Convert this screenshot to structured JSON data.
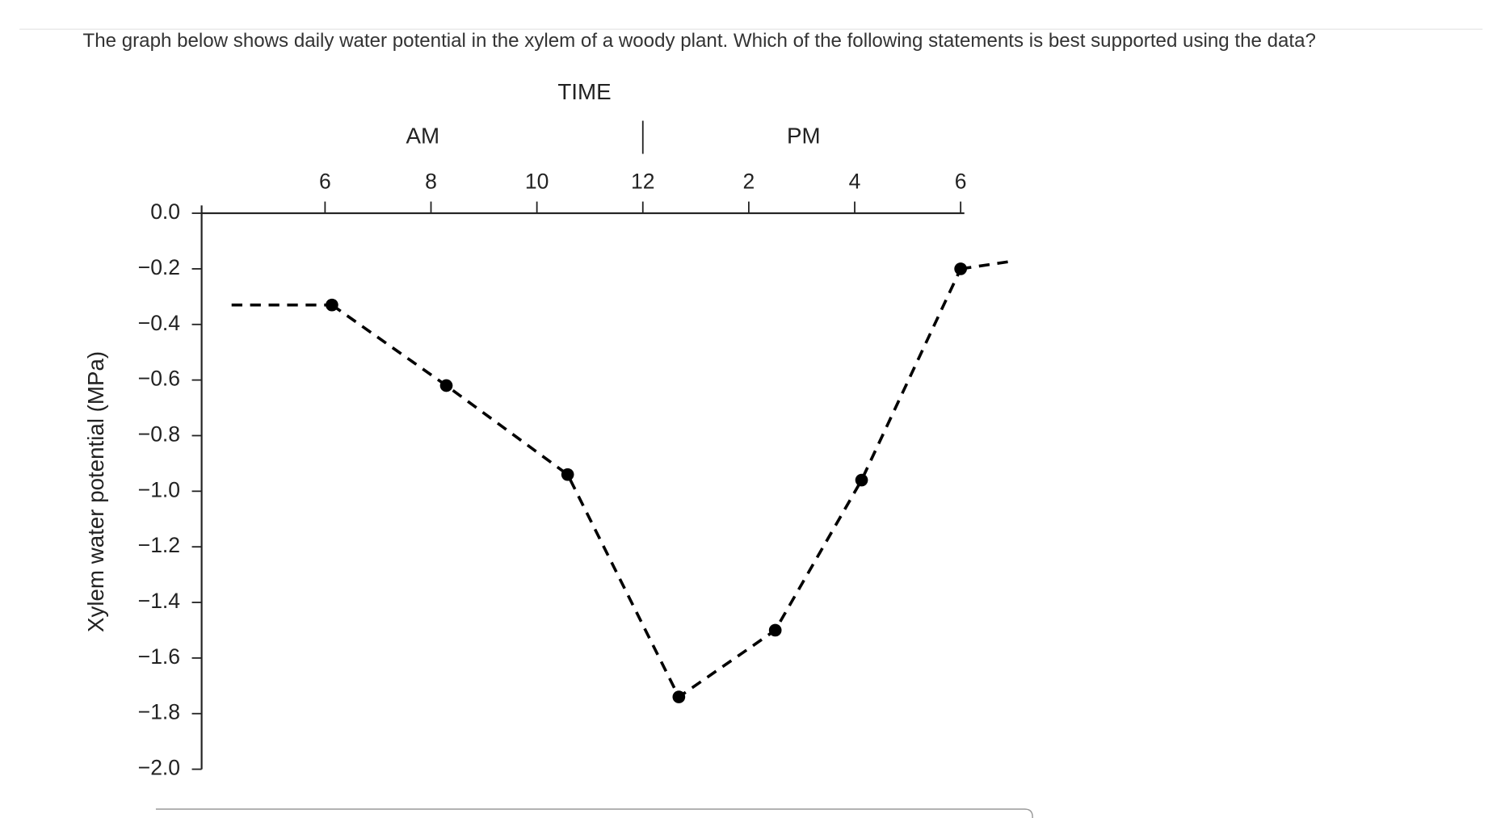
{
  "question": "The graph below shows daily water potential in the xylem of a woody plant. Which of the following statements is best supported using the data?",
  "chart_data": {
    "type": "line",
    "title": "TIME",
    "annotations": [
      "AM",
      "PM"
    ],
    "y_label": "Xylem water potential (MPa)",
    "xlim": [
      3.67,
      18.07
    ],
    "xticks": [
      6,
      8,
      10,
      12,
      {
        "value": 14,
        "label": "2"
      },
      {
        "value": 16,
        "label": "4"
      },
      {
        "value": 18,
        "label": "6"
      }
    ],
    "ylim": [
      -2.0,
      0.0
    ],
    "yticks": [
      {
        "value": 0.0,
        "label": "0.0"
      },
      {
        "value": -0.2,
        "label": "−0.2"
      },
      {
        "value": -0.4,
        "label": "−0.4"
      },
      {
        "value": -0.6,
        "label": "−0.6"
      },
      {
        "value": -0.8,
        "label": "−0.8"
      },
      {
        "value": -1.0,
        "label": "−1.0"
      },
      {
        "value": -1.2,
        "label": "−1.2"
      },
      {
        "value": -1.4,
        "label": "−1.4"
      },
      {
        "value": -1.6,
        "label": "−1.6"
      },
      {
        "value": -1.8,
        "label": "−1.8"
      },
      {
        "value": -2.0,
        "label": "−2.0"
      }
    ],
    "x": [
      6.13,
      8.29,
      10.58,
      12.68,
      14.5,
      16.13,
      18.0
    ],
    "values": [
      -0.33,
      -0.62,
      -0.94,
      -1.74,
      -1.5,
      -0.96,
      -0.2
    ],
    "color": "#000000",
    "dashed": true
  }
}
